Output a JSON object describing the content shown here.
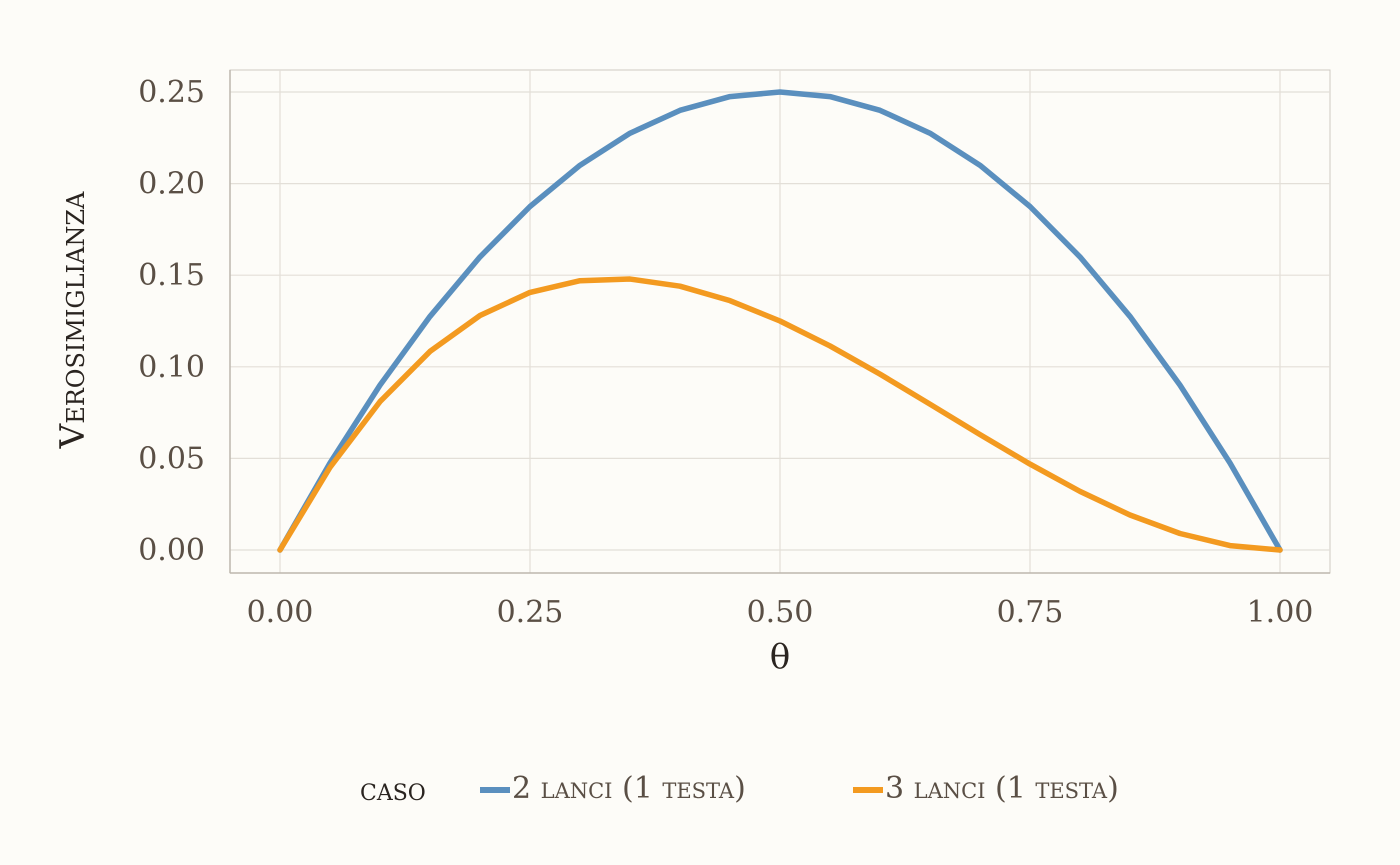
{
  "chart_data": {
    "type": "line",
    "title": "",
    "xlabel": "θ",
    "ylabel": "Verosimiglianza",
    "xlim": [
      0,
      1
    ],
    "ylim": [
      0,
      0.25
    ],
    "x_ticks": [
      "0.00",
      "0.25",
      "0.50",
      "0.75",
      "1.00"
    ],
    "y_ticks": [
      "0.00",
      "0.05",
      "0.10",
      "0.15",
      "0.20",
      "0.25"
    ],
    "grid": true,
    "legend_title": "caso",
    "legend_placement": "bottom",
    "x": [
      0,
      0.05,
      0.1,
      0.15,
      0.2,
      0.25,
      0.3,
      0.35,
      0.4,
      0.45,
      0.5,
      0.55,
      0.6,
      0.65,
      0.7,
      0.75,
      0.8,
      0.85,
      0.9,
      0.95,
      1.0
    ],
    "series": [
      {
        "name": "2 lanci (1 testa)",
        "color": "#5a8fbe",
        "values": [
          0,
          0.0475,
          0.09,
          0.1275,
          0.16,
          0.1875,
          0.21,
          0.2275,
          0.24,
          0.2475,
          0.25,
          0.2475,
          0.24,
          0.2275,
          0.21,
          0.1875,
          0.16,
          0.1275,
          0.09,
          0.0475,
          0
        ]
      },
      {
        "name": "3 lanci (1 testa)",
        "color": "#f39a20",
        "values": [
          0,
          0.0451,
          0.081,
          0.1084,
          0.128,
          0.1406,
          0.147,
          0.1479,
          0.144,
          0.1361,
          0.125,
          0.1114,
          0.096,
          0.0796,
          0.063,
          0.0469,
          0.032,
          0.0191,
          0.009,
          0.0024,
          0
        ]
      }
    ]
  }
}
